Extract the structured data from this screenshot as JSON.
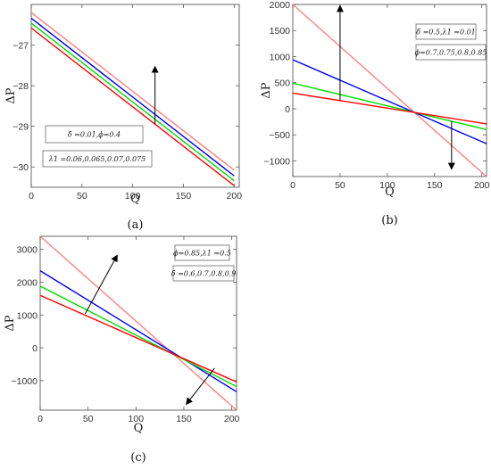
{
  "chart_data": [
    {
      "type": "line",
      "caption": "(a)",
      "xlabel": "Q",
      "ylabel": "ΔP",
      "xlim": [
        0,
        205
      ],
      "ylim": [
        -30.5,
        -26
      ],
      "xticks": [
        0,
        50,
        100,
        150,
        200
      ],
      "yticks": [
        -30,
        -29,
        -28,
        -27
      ],
      "legend_lines": [
        "δ̄ =0.01,ϕ=0.4",
        "λ1 =0.06,0.065,0.07,0.075"
      ],
      "series": [
        {
          "color": "#ff8080",
          "x": [
            0,
            200
          ],
          "values": [
            -26.2,
            -30.08
          ]
        },
        {
          "color": "#0000ff",
          "x": [
            0,
            200
          ],
          "values": [
            -26.34,
            -30.22
          ]
        },
        {
          "color": "#00dd00",
          "x": [
            0,
            200
          ],
          "values": [
            -26.46,
            -30.34
          ]
        },
        {
          "color": "#ff0000",
          "x": [
            0,
            200
          ],
          "values": [
            -26.58,
            -30.46
          ]
        }
      ],
      "arrows": [
        {
          "from": [
            122,
            -28.95
          ],
          "to": [
            122,
            -27.55
          ]
        }
      ]
    },
    {
      "type": "line",
      "caption": "(b)",
      "xlabel": "Q",
      "ylabel": "ΔP",
      "xlim": [
        0,
        205
      ],
      "ylim": [
        -1300,
        2000
      ],
      "xticks": [
        0,
        50,
        100,
        150,
        200
      ],
      "yticks": [
        -1000,
        -500,
        0,
        500,
        1000,
        1500,
        2000
      ],
      "legend_lines": [
        "δ̄ =0.5,λ1 =0.01",
        "ϕ=0.7,0.75,0.8,0.85"
      ],
      "series": [
        {
          "color": "#ff8080",
          "x": [
            0,
            205
          ],
          "values": [
            2000,
            -1300
          ]
        },
        {
          "color": "#0000ff",
          "x": [
            0,
            205
          ],
          "values": [
            940,
            -670
          ]
        },
        {
          "color": "#00dd00",
          "x": [
            0,
            205
          ],
          "values": [
            490,
            -400
          ]
        },
        {
          "color": "#ff0000",
          "x": [
            0,
            205
          ],
          "values": [
            300,
            -290
          ]
        }
      ],
      "arrows": [
        {
          "from": [
            50,
            160
          ],
          "to": [
            50,
            1960
          ]
        },
        {
          "from": [
            168,
            -240
          ],
          "to": [
            168,
            -1140
          ]
        }
      ]
    },
    {
      "type": "line",
      "caption": "(c)",
      "xlabel": "Q",
      "ylabel": "ΔP",
      "xlim": [
        0,
        205
      ],
      "ylim": [
        -1900,
        3400
      ],
      "xticks": [
        0,
        50,
        100,
        150,
        200
      ],
      "yticks": [
        -1000,
        0,
        1000,
        2000,
        3000
      ],
      "legend_lines": [
        "ϕ=0.85,λ1 =0.5",
        "δ̄ =0.6,0.7,0.8,0.9"
      ],
      "series": [
        {
          "color": "#ff8080",
          "x": [
            0,
            205
          ],
          "values": [
            3400,
            -1900
          ]
        },
        {
          "color": "#0000ff",
          "x": [
            0,
            205
          ],
          "values": [
            2350,
            -1340
          ]
        },
        {
          "color": "#00dd00",
          "x": [
            0,
            205
          ],
          "values": [
            1880,
            -1180
          ]
        },
        {
          "color": "#ff0000",
          "x": [
            0,
            205
          ],
          "values": [
            1600,
            -1040
          ]
        }
      ],
      "arrows": [
        {
          "from": [
            47,
            1040
          ],
          "to": [
            80,
            2800
          ]
        },
        {
          "from": [
            182,
            -620
          ],
          "to": [
            153,
            -1700
          ]
        }
      ]
    }
  ]
}
